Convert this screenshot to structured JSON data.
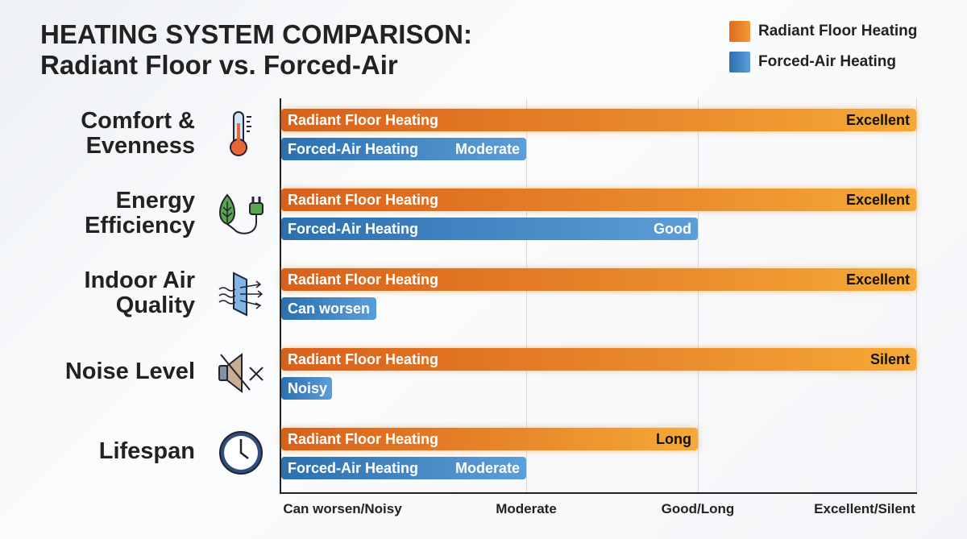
{
  "title_line1": "HEATING SYSTEM COMPARISON:",
  "title_line2": "Radiant Floor vs. Forced-Air",
  "colors": {
    "radiant": "#e8782a",
    "forced_air": "#3f86c6"
  },
  "chart_data": {
    "type": "bar",
    "orientation": "horizontal",
    "title": "HEATING SYSTEM COMPARISON: Radiant Floor vs. Forced-Air",
    "x_ticks": [
      "Can worsen/Noisy",
      "Moderate",
      "Good/Long",
      "Excellent/Silent"
    ],
    "x_scale": "ordinal levels 0-3",
    "legend": [
      "Radiant Floor Heating",
      "Forced-Air Heating"
    ],
    "legend_position": "top-right",
    "categories": [
      {
        "label": "Comfort & Evenness",
        "icon": "thermometer-icon"
      },
      {
        "label": "Energy Efficiency",
        "icon": "leaf-plug-icon"
      },
      {
        "label": "Indoor Air Quality",
        "icon": "air-filter-icon"
      },
      {
        "label": "Noise Level",
        "icon": "speaker-muted-icon"
      },
      {
        "label": "Lifespan",
        "icon": "clock-icon"
      }
    ],
    "series": [
      {
        "name": "Radiant Floor Heating",
        "values": [
          3,
          3,
          3,
          3,
          2
        ],
        "value_labels": [
          "Excellent",
          "Excellent",
          "Excellent",
          "Silent",
          "Long"
        ],
        "show_name": [
          true,
          true,
          true,
          true,
          true
        ]
      },
      {
        "name": "Forced-Air Heating",
        "values": [
          1,
          2,
          0.39,
          0.21,
          1
        ],
        "value_labels": [
          "Moderate",
          "Good",
          "Can worsen",
          "Noisy",
          "Moderate"
        ],
        "show_name": [
          true,
          true,
          false,
          false,
          true
        ]
      }
    ]
  }
}
